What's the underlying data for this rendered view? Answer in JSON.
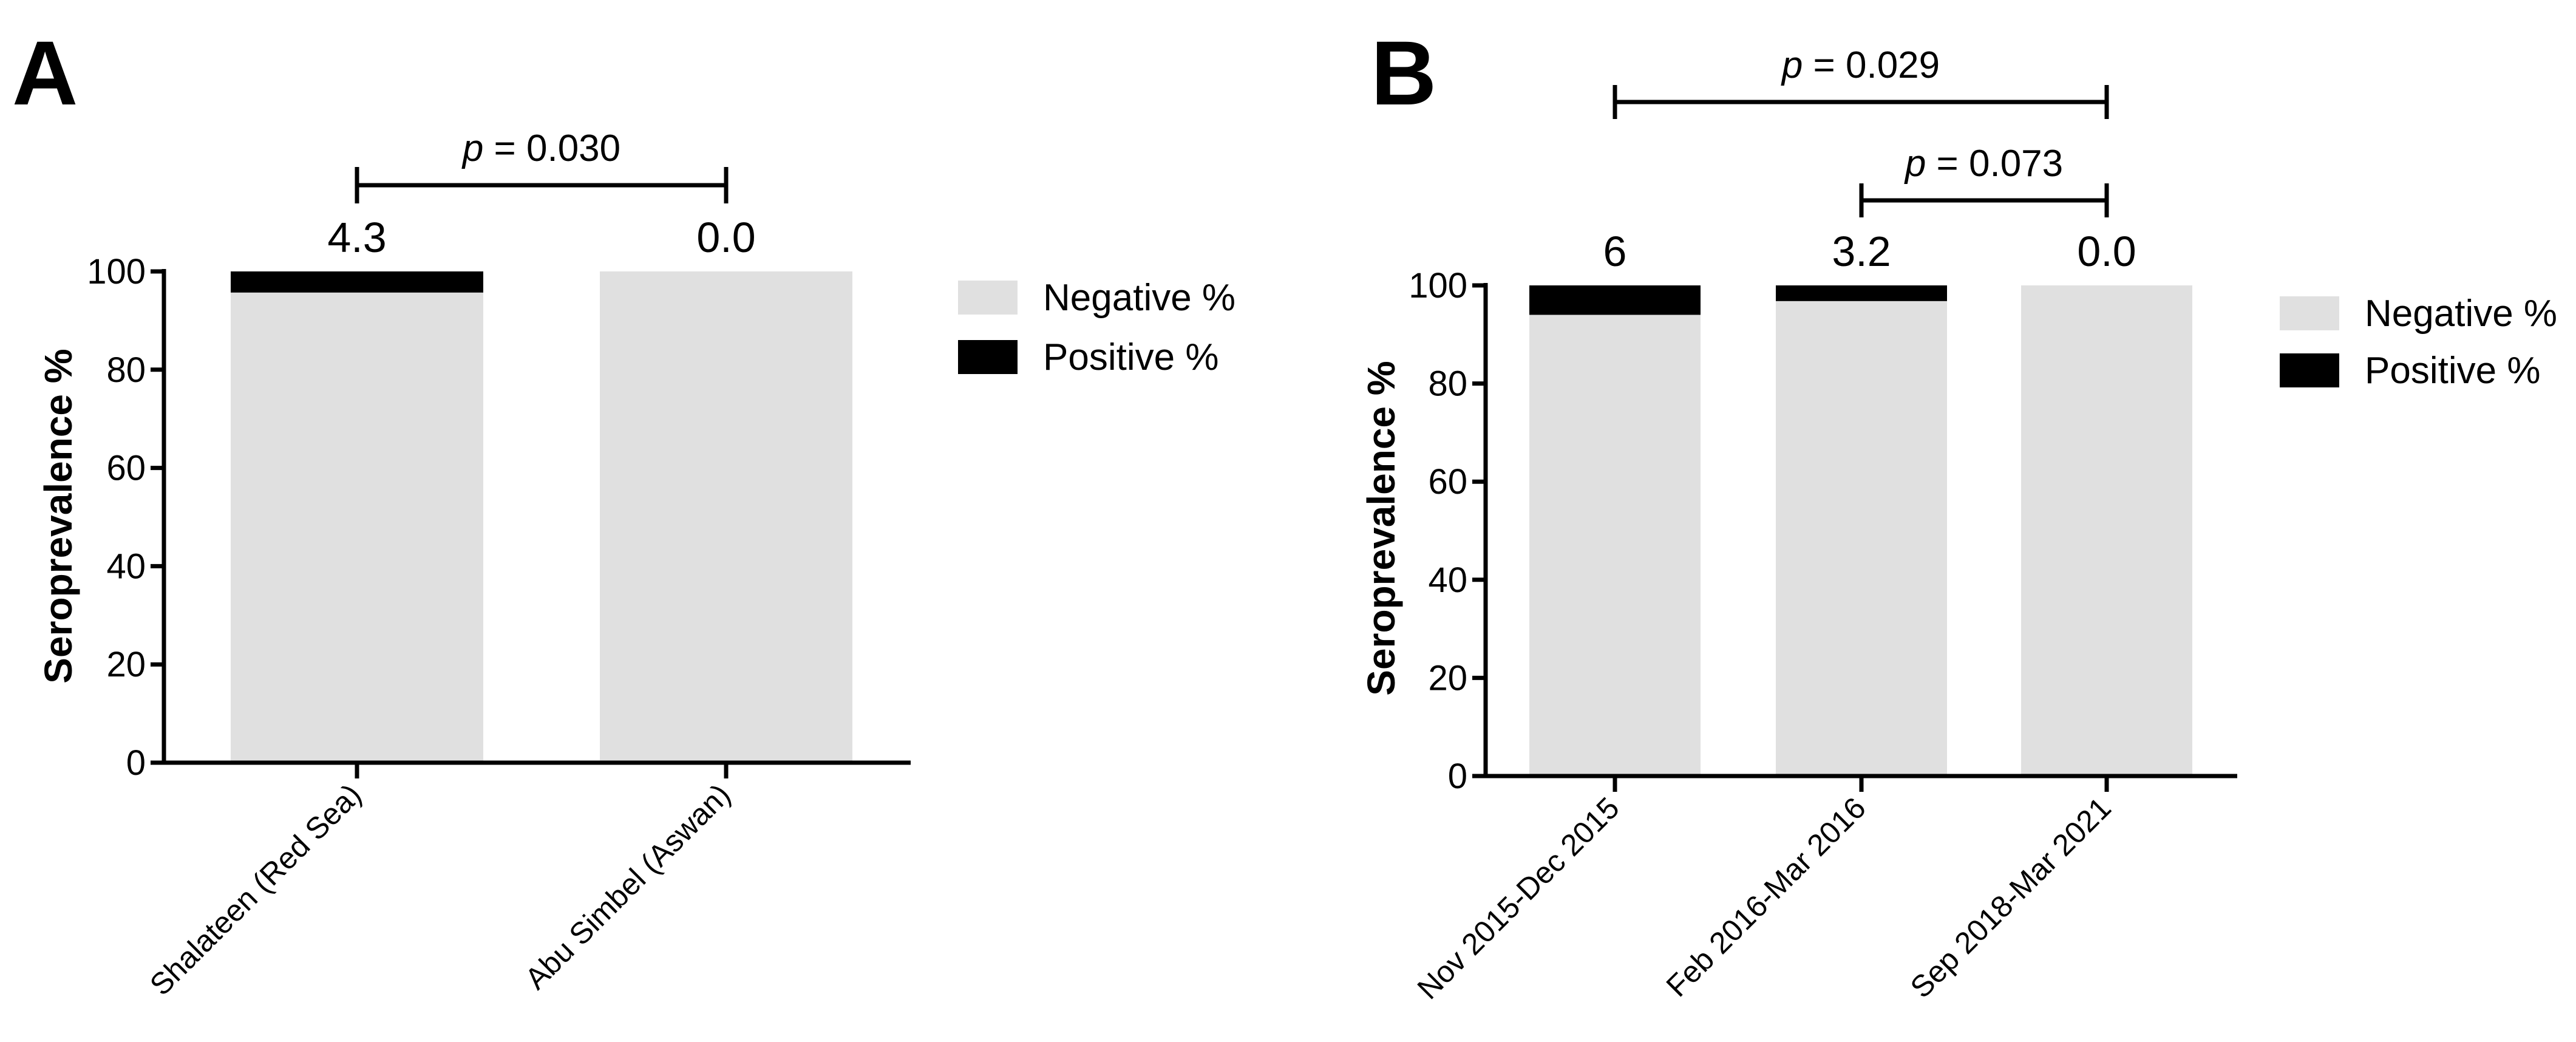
{
  "chart_data": [
    {
      "panel": "A",
      "type": "bar",
      "stacked": true,
      "categories": [
        "Shalateen (Red Sea)",
        "Abu Simbel (Aswan)"
      ],
      "series": [
        {
          "name": "Negative %",
          "color": "#e0e0e0",
          "values": [
            95.7,
            100.0
          ]
        },
        {
          "name": "Positive %",
          "color": "#000000",
          "values": [
            4.3,
            0.0
          ]
        }
      ],
      "data_labels": [
        "4.3",
        "0.0"
      ],
      "ylabel": "Seroprevalence %",
      "ylim": [
        0,
        100
      ],
      "yticks": [
        0,
        20,
        40,
        60,
        80,
        100
      ],
      "legend": [
        "Negative %",
        "Positive %"
      ],
      "legend_position": "right",
      "comparisons": [
        {
          "from": 0,
          "to": 1,
          "p_symbol": "p",
          "p_value": "= 0.030"
        }
      ]
    },
    {
      "panel": "B",
      "type": "bar",
      "stacked": true,
      "categories": [
        "Nov 2015-Dec 2015",
        "Feb 2016-Mar 2016",
        "Sep 2018-Mar 2021"
      ],
      "series": [
        {
          "name": "Negative %",
          "color": "#e0e0e0",
          "values": [
            94.0,
            96.8,
            100.0
          ]
        },
        {
          "name": "Positive %",
          "color": "#000000",
          "values": [
            6.0,
            3.2,
            0.0
          ]
        }
      ],
      "data_labels": [
        "6",
        "3.2",
        "0.0"
      ],
      "ylabel": "Seroprevalence %",
      "ylim": [
        0,
        100
      ],
      "yticks": [
        0,
        20,
        40,
        60,
        80,
        100
      ],
      "legend": [
        "Negative %",
        "Positive %"
      ],
      "legend_position": "right",
      "comparisons": [
        {
          "from": 0,
          "to": 2,
          "p_symbol": "p",
          "p_value": "= 0.029"
        },
        {
          "from": 1,
          "to": 2,
          "p_symbol": "p",
          "p_value": "= 0.073"
        }
      ]
    }
  ]
}
